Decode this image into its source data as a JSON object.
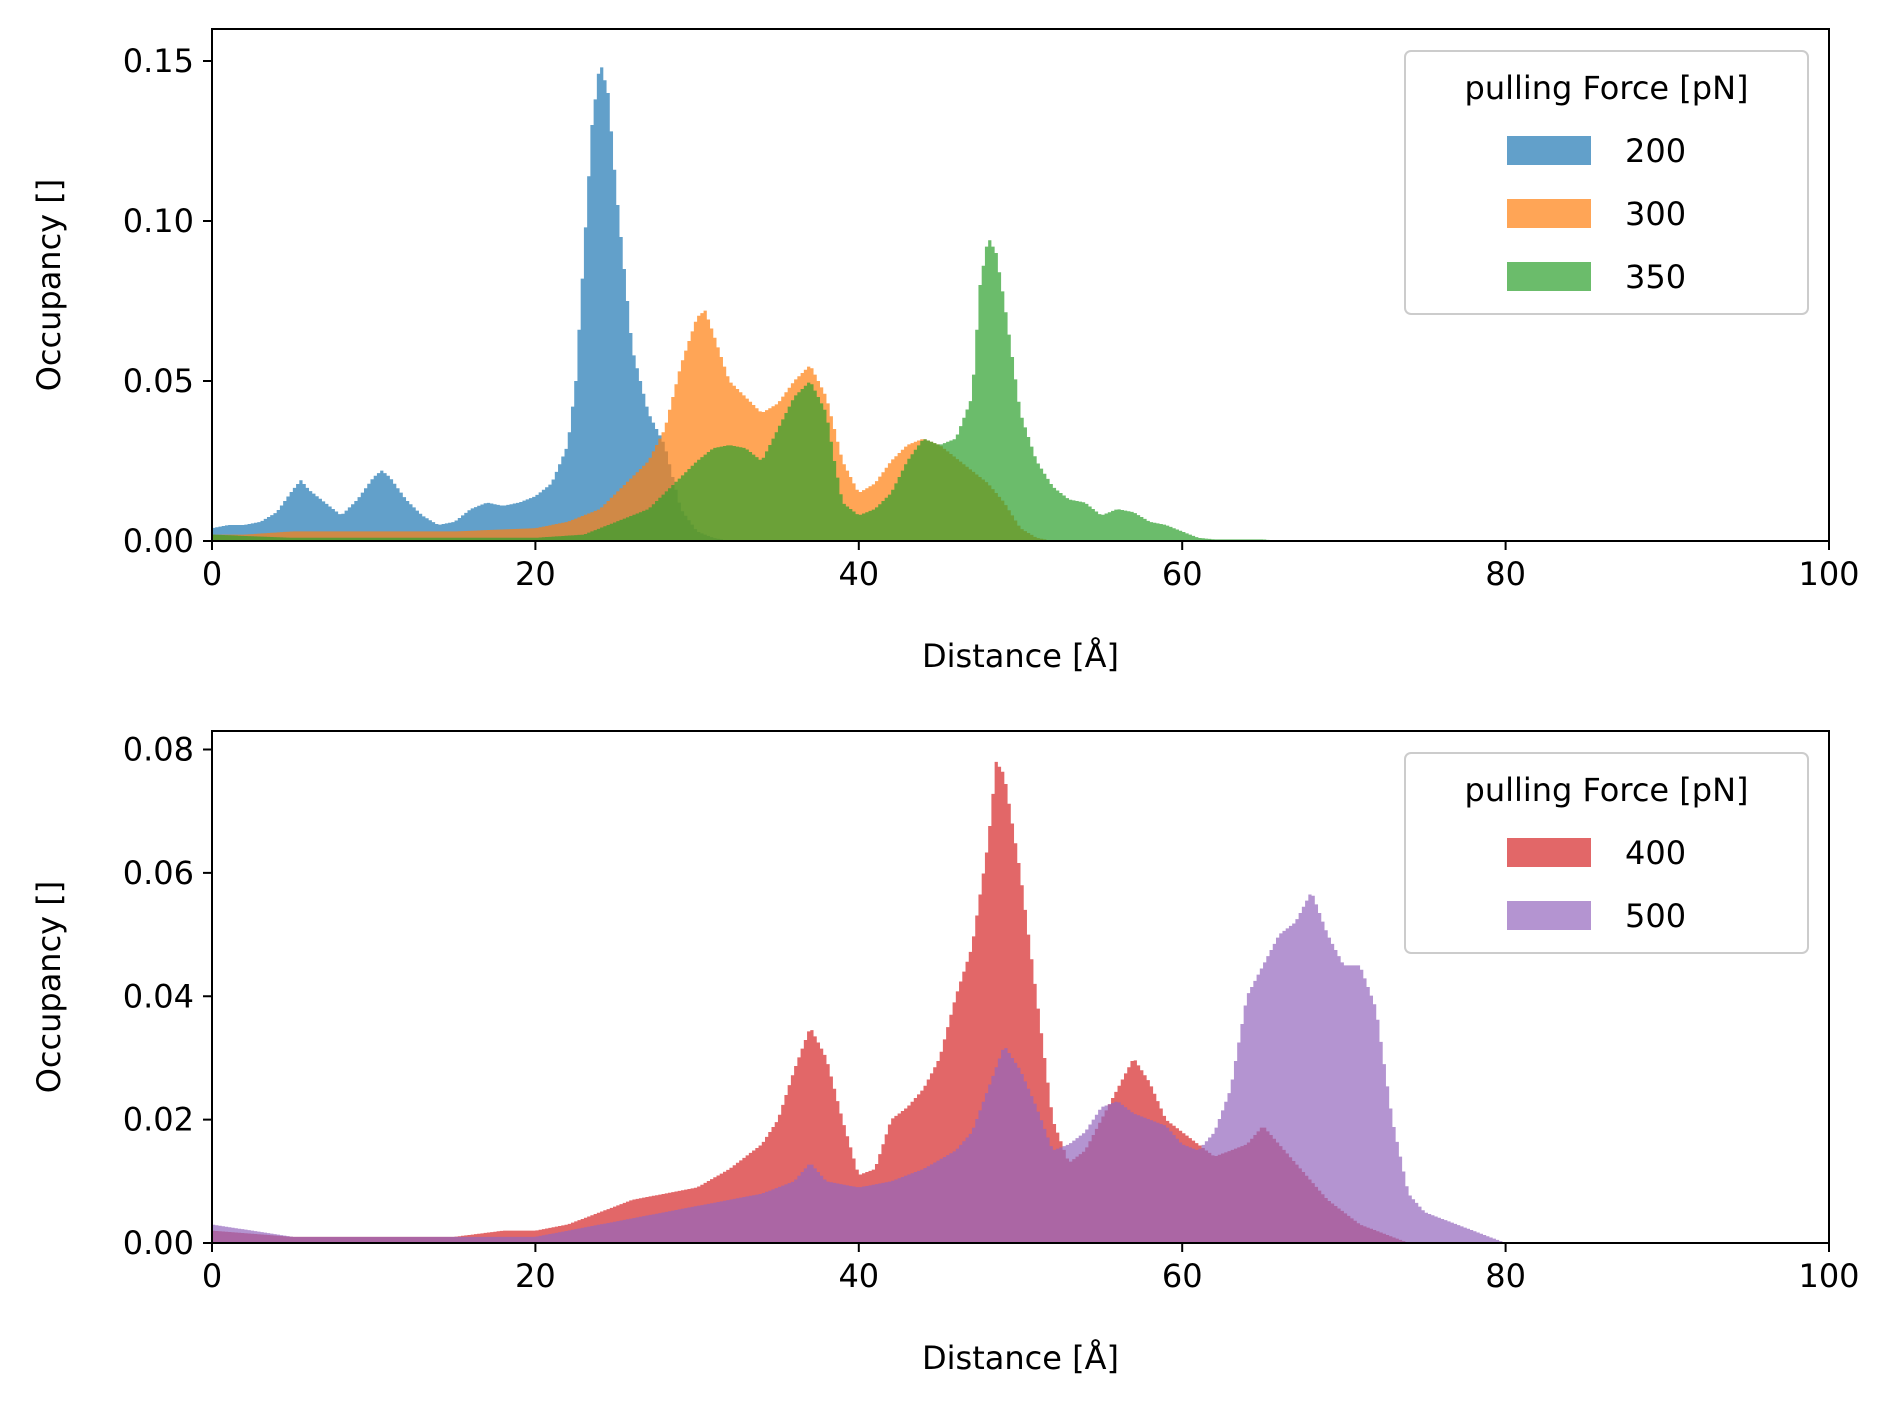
{
  "chart_data": [
    {
      "type": "histogram",
      "xlabel": "Distance [Å]",
      "ylabel": "Occupancy []",
      "xlim": [
        0,
        100
      ],
      "ylim": [
        0,
        0.16
      ],
      "xticks": [
        "0",
        "20",
        "40",
        "60",
        "80",
        "100"
      ],
      "yticks": [
        "0.00",
        "0.05",
        "0.10",
        "0.15"
      ],
      "xtick_values": [
        0,
        20,
        40,
        60,
        80,
        100
      ],
      "ytick_values": [
        0,
        0.05,
        0.1,
        0.15
      ],
      "legend": {
        "title": "pulling Force [pN]",
        "position": "top-right"
      },
      "series": [
        {
          "name": "200",
          "color": "#1f77b4",
          "points": [
            [
              0,
              0.004
            ],
            [
              1,
              0.005
            ],
            [
              2,
              0.005
            ],
            [
              3,
              0.006
            ],
            [
              4,
              0.009
            ],
            [
              5,
              0.016
            ],
            [
              5.5,
              0.019
            ],
            [
              6,
              0.016
            ],
            [
              7,
              0.012
            ],
            [
              8,
              0.008
            ],
            [
              9,
              0.013
            ],
            [
              10,
              0.02
            ],
            [
              10.5,
              0.022
            ],
            [
              11,
              0.02
            ],
            [
              12,
              0.013
            ],
            [
              13,
              0.008
            ],
            [
              14,
              0.005
            ],
            [
              15,
              0.006
            ],
            [
              16,
              0.01
            ],
            [
              17,
              0.012
            ],
            [
              18,
              0.011
            ],
            [
              19,
              0.012
            ],
            [
              20,
              0.014
            ],
            [
              21,
              0.018
            ],
            [
              22,
              0.03
            ],
            [
              22.5,
              0.05
            ],
            [
              23,
              0.09
            ],
            [
              23.5,
              0.13
            ],
            [
              24,
              0.15
            ],
            [
              24.5,
              0.14
            ],
            [
              25,
              0.11
            ],
            [
              25.5,
              0.085
            ],
            [
              26,
              0.06
            ],
            [
              27,
              0.04
            ],
            [
              28,
              0.03
            ],
            [
              29,
              0.01
            ],
            [
              30,
              0.003
            ],
            [
              31,
              0.001
            ],
            [
              32,
              0
            ]
          ]
        },
        {
          "name": "300",
          "color": "#ff7f0e",
          "points": [
            [
              0,
              0.002
            ],
            [
              2,
              0.002
            ],
            [
              5,
              0.003
            ],
            [
              10,
              0.003
            ],
            [
              15,
              0.003
            ],
            [
              20,
              0.004
            ],
            [
              22,
              0.006
            ],
            [
              24,
              0.01
            ],
            [
              25,
              0.015
            ],
            [
              26,
              0.02
            ],
            [
              27,
              0.025
            ],
            [
              28,
              0.035
            ],
            [
              29,
              0.055
            ],
            [
              30,
              0.07
            ],
            [
              30.5,
              0.072
            ],
            [
              31,
              0.065
            ],
            [
              32,
              0.05
            ],
            [
              33,
              0.045
            ],
            [
              34,
              0.04
            ],
            [
              35,
              0.043
            ],
            [
              36,
              0.05
            ],
            [
              37,
              0.055
            ],
            [
              38,
              0.045
            ],
            [
              39,
              0.025
            ],
            [
              40,
              0.015
            ],
            [
              41,
              0.018
            ],
            [
              42,
              0.025
            ],
            [
              43,
              0.03
            ],
            [
              44,
              0.032
            ],
            [
              45,
              0.03
            ],
            [
              46,
              0.026
            ],
            [
              47,
              0.022
            ],
            [
              48,
              0.018
            ],
            [
              49,
              0.012
            ],
            [
              50,
              0.004
            ],
            [
              51,
              0.001
            ],
            [
              52,
              0
            ]
          ]
        },
        {
          "name": "350",
          "color": "#2ca02c",
          "points": [
            [
              0,
              0.002
            ],
            [
              5,
              0.001
            ],
            [
              10,
              0.001
            ],
            [
              15,
              0.001
            ],
            [
              20,
              0.001
            ],
            [
              23,
              0.002
            ],
            [
              25,
              0.006
            ],
            [
              27,
              0.01
            ],
            [
              28,
              0.015
            ],
            [
              29,
              0.02
            ],
            [
              30,
              0.025
            ],
            [
              31,
              0.029
            ],
            [
              32,
              0.03
            ],
            [
              33,
              0.029
            ],
            [
              34,
              0.025
            ],
            [
              35,
              0.035
            ],
            [
              36,
              0.045
            ],
            [
              37,
              0.05
            ],
            [
              38,
              0.04
            ],
            [
              38.5,
              0.025
            ],
            [
              39,
              0.012
            ],
            [
              40,
              0.008
            ],
            [
              41,
              0.01
            ],
            [
              42,
              0.015
            ],
            [
              43,
              0.025
            ],
            [
              44,
              0.032
            ],
            [
              45,
              0.03
            ],
            [
              46,
              0.032
            ],
            [
              47,
              0.045
            ],
            [
              47.5,
              0.08
            ],
            [
              48,
              0.095
            ],
            [
              48.5,
              0.09
            ],
            [
              49,
              0.075
            ],
            [
              50,
              0.04
            ],
            [
              51,
              0.025
            ],
            [
              52,
              0.017
            ],
            [
              53,
              0.013
            ],
            [
              54,
              0.012
            ],
            [
              55,
              0.008
            ],
            [
              56,
              0.01
            ],
            [
              57,
              0.009
            ],
            [
              58,
              0.006
            ],
            [
              59,
              0.005
            ],
            [
              60,
              0.003
            ],
            [
              61,
              0.001
            ],
            [
              62,
              0.0005
            ],
            [
              65,
              0.0005
            ],
            [
              66,
              0
            ]
          ]
        }
      ]
    },
    {
      "type": "histogram",
      "xlabel": "Distance [Å]",
      "ylabel": "Occupancy []",
      "xlim": [
        0,
        100
      ],
      "ylim": [
        0,
        0.083
      ],
      "xticks": [
        "0",
        "20",
        "40",
        "60",
        "80",
        "100"
      ],
      "yticks": [
        "0.00",
        "0.02",
        "0.04",
        "0.06",
        "0.08"
      ],
      "xtick_values": [
        0,
        20,
        40,
        60,
        80,
        100
      ],
      "ytick_values": [
        0,
        0.02,
        0.04,
        0.06,
        0.08
      ],
      "legend": {
        "title": "pulling Force [pN]",
        "position": "top-right"
      },
      "series": [
        {
          "name": "400",
          "color": "#d62728",
          "points": [
            [
              0,
              0.002
            ],
            [
              5,
              0.001
            ],
            [
              10,
              0.001
            ],
            [
              15,
              0.001
            ],
            [
              18,
              0.002
            ],
            [
              20,
              0.002
            ],
            [
              22,
              0.003
            ],
            [
              24,
              0.005
            ],
            [
              26,
              0.007
            ],
            [
              28,
              0.008
            ],
            [
              30,
              0.009
            ],
            [
              32,
              0.012
            ],
            [
              34,
              0.016
            ],
            [
              35,
              0.02
            ],
            [
              36,
              0.028
            ],
            [
              37,
              0.035
            ],
            [
              38,
              0.03
            ],
            [
              39,
              0.02
            ],
            [
              40,
              0.011
            ],
            [
              41,
              0.012
            ],
            [
              42,
              0.02
            ],
            [
              43,
              0.022
            ],
            [
              44,
              0.025
            ],
            [
              45,
              0.03
            ],
            [
              46,
              0.04
            ],
            [
              47,
              0.048
            ],
            [
              48,
              0.065
            ],
            [
              48.5,
              0.078
            ],
            [
              49,
              0.076
            ],
            [
              50,
              0.06
            ],
            [
              51,
              0.04
            ],
            [
              52,
              0.02
            ],
            [
              53,
              0.013
            ],
            [
              54,
              0.015
            ],
            [
              55,
              0.02
            ],
            [
              56,
              0.025
            ],
            [
              57,
              0.03
            ],
            [
              58,
              0.026
            ],
            [
              59,
              0.02
            ],
            [
              60,
              0.018
            ],
            [
              61,
              0.016
            ],
            [
              62,
              0.014
            ],
            [
              63,
              0.015
            ],
            [
              64,
              0.016
            ],
            [
              65,
              0.019
            ],
            [
              66,
              0.016
            ],
            [
              67,
              0.013
            ],
            [
              68,
              0.01
            ],
            [
              69,
              0.007
            ],
            [
              70,
              0.005
            ],
            [
              71,
              0.003
            ],
            [
              72,
              0.002
            ],
            [
              73,
              0.001
            ],
            [
              74,
              0
            ]
          ]
        },
        {
          "name": "500",
          "color": "#9467bd",
          "points": [
            [
              0,
              0.003
            ],
            [
              5,
              0.001
            ],
            [
              10,
              0.001
            ],
            [
              15,
              0.001
            ],
            [
              20,
              0.001
            ],
            [
              22,
              0.002
            ],
            [
              24,
              0.003
            ],
            [
              26,
              0.004
            ],
            [
              28,
              0.005
            ],
            [
              30,
              0.006
            ],
            [
              32,
              0.007
            ],
            [
              34,
              0.008
            ],
            [
              36,
              0.01
            ],
            [
              37,
              0.013
            ],
            [
              38,
              0.01
            ],
            [
              40,
              0.009
            ],
            [
              42,
              0.01
            ],
            [
              44,
              0.012
            ],
            [
              46,
              0.015
            ],
            [
              47,
              0.018
            ],
            [
              48,
              0.025
            ],
            [
              49,
              0.032
            ],
            [
              50,
              0.028
            ],
            [
              51,
              0.022
            ],
            [
              52,
              0.015
            ],
            [
              53,
              0.016
            ],
            [
              54,
              0.018
            ],
            [
              55,
              0.022
            ],
            [
              56,
              0.023
            ],
            [
              57,
              0.021
            ],
            [
              58,
              0.02
            ],
            [
              59,
              0.019
            ],
            [
              60,
              0.016
            ],
            [
              61,
              0.015
            ],
            [
              62,
              0.018
            ],
            [
              63,
              0.025
            ],
            [
              64,
              0.04
            ],
            [
              65,
              0.045
            ],
            [
              66,
              0.05
            ],
            [
              67,
              0.052
            ],
            [
              68,
              0.057
            ],
            [
              69,
              0.05
            ],
            [
              70,
              0.045
            ],
            [
              71,
              0.045
            ],
            [
              72,
              0.038
            ],
            [
              73,
              0.02
            ],
            [
              74,
              0.008
            ],
            [
              75,
              0.005
            ],
            [
              76,
              0.004
            ],
            [
              77,
              0.003
            ],
            [
              78,
              0.002
            ],
            [
              79,
              0.001
            ],
            [
              80,
              0
            ]
          ]
        }
      ]
    }
  ]
}
